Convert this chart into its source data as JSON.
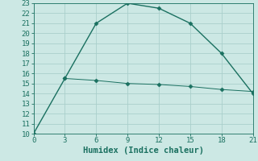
{
  "title": "",
  "xlabel": "Humidex (Indice chaleur)",
  "line1_x": [
    0,
    3,
    6,
    9,
    12,
    15,
    18,
    21
  ],
  "line1_y": [
    10,
    15.5,
    21,
    23,
    22.5,
    21,
    18,
    14
  ],
  "line2_x": [
    3,
    6,
    9,
    12,
    15,
    18,
    21
  ],
  "line2_y": [
    15.5,
    15.3,
    15.0,
    14.9,
    14.7,
    14.4,
    14.2
  ],
  "line_color": "#1a7060",
  "bg_color": "#cce8e4",
  "grid_color": "#aacfcb",
  "xlim": [
    0,
    21
  ],
  "ylim": [
    10,
    23
  ],
  "xticks": [
    0,
    3,
    6,
    9,
    12,
    15,
    18,
    21
  ],
  "yticks": [
    10,
    11,
    12,
    13,
    14,
    15,
    16,
    17,
    18,
    19,
    20,
    21,
    22,
    23
  ],
  "tick_fontsize": 6.5,
  "xlabel_fontsize": 7.5,
  "marker": "D",
  "markersize": 2.5,
  "linewidth1": 1.0,
  "linewidth2": 0.7
}
